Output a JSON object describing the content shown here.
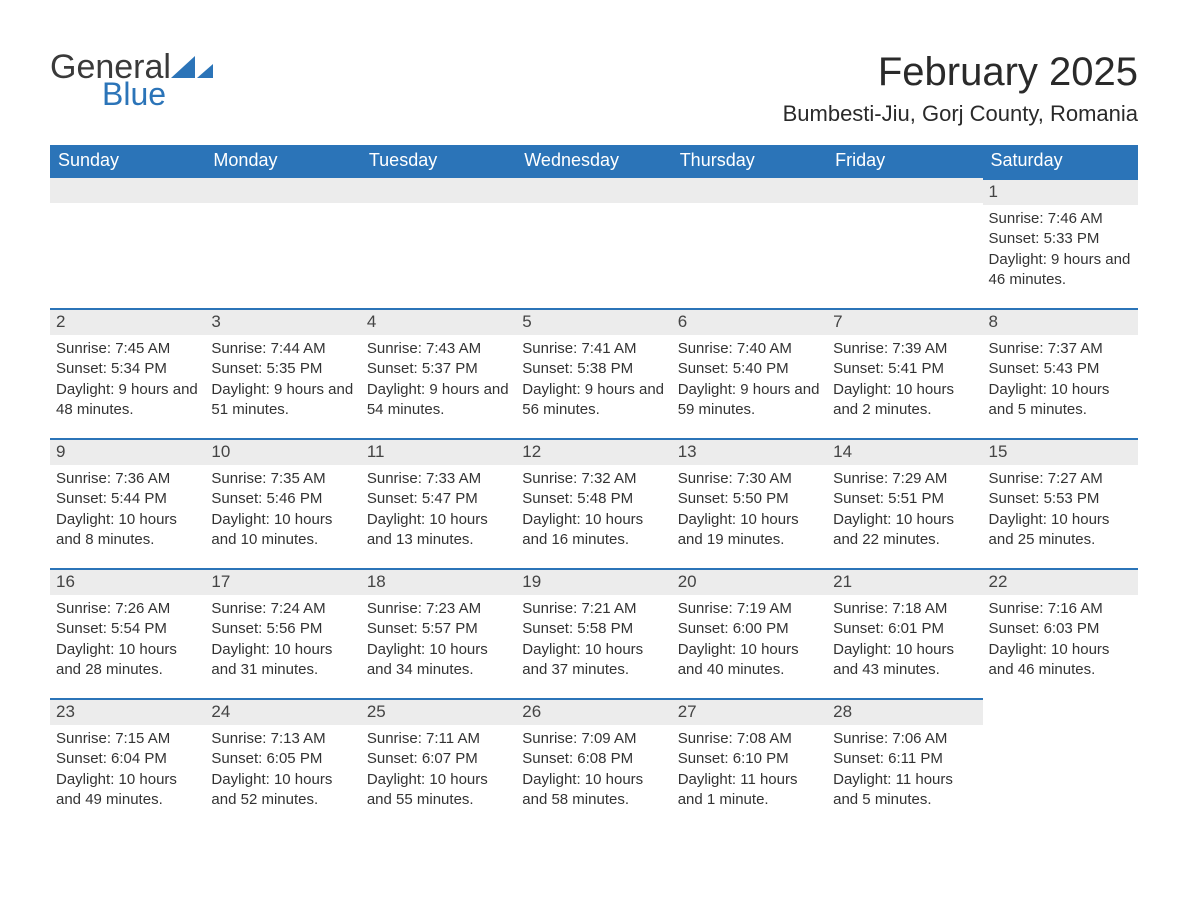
{
  "brand": {
    "general": "General",
    "blue": "Blue",
    "accent_color": "#2b74b8"
  },
  "title": "February 2025",
  "location": "Bumbesti-Jiu, Gorj County, Romania",
  "header_bg_color": "#2b74b8",
  "header_text_color": "#ffffff",
  "dayhead_bg_color": "#ececec",
  "text_color": "#333333",
  "columns": [
    "Sunday",
    "Monday",
    "Tuesday",
    "Wednesday",
    "Thursday",
    "Friday",
    "Saturday"
  ],
  "weeks": [
    [
      null,
      null,
      null,
      null,
      null,
      null,
      {
        "n": "1",
        "sunrise": "Sunrise: 7:46 AM",
        "sunset": "Sunset: 5:33 PM",
        "daylight": "Daylight: 9 hours and 46 minutes."
      }
    ],
    [
      {
        "n": "2",
        "sunrise": "Sunrise: 7:45 AM",
        "sunset": "Sunset: 5:34 PM",
        "daylight": "Daylight: 9 hours and 48 minutes."
      },
      {
        "n": "3",
        "sunrise": "Sunrise: 7:44 AM",
        "sunset": "Sunset: 5:35 PM",
        "daylight": "Daylight: 9 hours and 51 minutes."
      },
      {
        "n": "4",
        "sunrise": "Sunrise: 7:43 AM",
        "sunset": "Sunset: 5:37 PM",
        "daylight": "Daylight: 9 hours and 54 minutes."
      },
      {
        "n": "5",
        "sunrise": "Sunrise: 7:41 AM",
        "sunset": "Sunset: 5:38 PM",
        "daylight": "Daylight: 9 hours and 56 minutes."
      },
      {
        "n": "6",
        "sunrise": "Sunrise: 7:40 AM",
        "sunset": "Sunset: 5:40 PM",
        "daylight": "Daylight: 9 hours and 59 minutes."
      },
      {
        "n": "7",
        "sunrise": "Sunrise: 7:39 AM",
        "sunset": "Sunset: 5:41 PM",
        "daylight": "Daylight: 10 hours and 2 minutes."
      },
      {
        "n": "8",
        "sunrise": "Sunrise: 7:37 AM",
        "sunset": "Sunset: 5:43 PM",
        "daylight": "Daylight: 10 hours and 5 minutes."
      }
    ],
    [
      {
        "n": "9",
        "sunrise": "Sunrise: 7:36 AM",
        "sunset": "Sunset: 5:44 PM",
        "daylight": "Daylight: 10 hours and 8 minutes."
      },
      {
        "n": "10",
        "sunrise": "Sunrise: 7:35 AM",
        "sunset": "Sunset: 5:46 PM",
        "daylight": "Daylight: 10 hours and 10 minutes."
      },
      {
        "n": "11",
        "sunrise": "Sunrise: 7:33 AM",
        "sunset": "Sunset: 5:47 PM",
        "daylight": "Daylight: 10 hours and 13 minutes."
      },
      {
        "n": "12",
        "sunrise": "Sunrise: 7:32 AM",
        "sunset": "Sunset: 5:48 PM",
        "daylight": "Daylight: 10 hours and 16 minutes."
      },
      {
        "n": "13",
        "sunrise": "Sunrise: 7:30 AM",
        "sunset": "Sunset: 5:50 PM",
        "daylight": "Daylight: 10 hours and 19 minutes."
      },
      {
        "n": "14",
        "sunrise": "Sunrise: 7:29 AM",
        "sunset": "Sunset: 5:51 PM",
        "daylight": "Daylight: 10 hours and 22 minutes."
      },
      {
        "n": "15",
        "sunrise": "Sunrise: 7:27 AM",
        "sunset": "Sunset: 5:53 PM",
        "daylight": "Daylight: 10 hours and 25 minutes."
      }
    ],
    [
      {
        "n": "16",
        "sunrise": "Sunrise: 7:26 AM",
        "sunset": "Sunset: 5:54 PM",
        "daylight": "Daylight: 10 hours and 28 minutes."
      },
      {
        "n": "17",
        "sunrise": "Sunrise: 7:24 AM",
        "sunset": "Sunset: 5:56 PM",
        "daylight": "Daylight: 10 hours and 31 minutes."
      },
      {
        "n": "18",
        "sunrise": "Sunrise: 7:23 AM",
        "sunset": "Sunset: 5:57 PM",
        "daylight": "Daylight: 10 hours and 34 minutes."
      },
      {
        "n": "19",
        "sunrise": "Sunrise: 7:21 AM",
        "sunset": "Sunset: 5:58 PM",
        "daylight": "Daylight: 10 hours and 37 minutes."
      },
      {
        "n": "20",
        "sunrise": "Sunrise: 7:19 AM",
        "sunset": "Sunset: 6:00 PM",
        "daylight": "Daylight: 10 hours and 40 minutes."
      },
      {
        "n": "21",
        "sunrise": "Sunrise: 7:18 AM",
        "sunset": "Sunset: 6:01 PM",
        "daylight": "Daylight: 10 hours and 43 minutes."
      },
      {
        "n": "22",
        "sunrise": "Sunrise: 7:16 AM",
        "sunset": "Sunset: 6:03 PM",
        "daylight": "Daylight: 10 hours and 46 minutes."
      }
    ],
    [
      {
        "n": "23",
        "sunrise": "Sunrise: 7:15 AM",
        "sunset": "Sunset: 6:04 PM",
        "daylight": "Daylight: 10 hours and 49 minutes."
      },
      {
        "n": "24",
        "sunrise": "Sunrise: 7:13 AM",
        "sunset": "Sunset: 6:05 PM",
        "daylight": "Daylight: 10 hours and 52 minutes."
      },
      {
        "n": "25",
        "sunrise": "Sunrise: 7:11 AM",
        "sunset": "Sunset: 6:07 PM",
        "daylight": "Daylight: 10 hours and 55 minutes."
      },
      {
        "n": "26",
        "sunrise": "Sunrise: 7:09 AM",
        "sunset": "Sunset: 6:08 PM",
        "daylight": "Daylight: 10 hours and 58 minutes."
      },
      {
        "n": "27",
        "sunrise": "Sunrise: 7:08 AM",
        "sunset": "Sunset: 6:10 PM",
        "daylight": "Daylight: 11 hours and 1 minute."
      },
      {
        "n": "28",
        "sunrise": "Sunrise: 7:06 AM",
        "sunset": "Sunset: 6:11 PM",
        "daylight": "Daylight: 11 hours and 5 minutes."
      },
      null
    ]
  ]
}
